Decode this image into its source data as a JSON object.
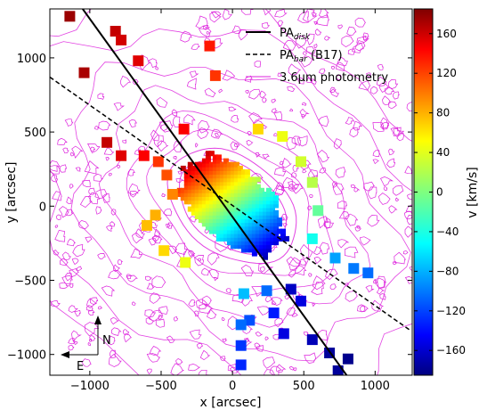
{
  "chart_data": {
    "type": "heatmap",
    "title": "",
    "xlabel": "x [arcsec]",
    "ylabel": "y [arcsec]",
    "xlim": [
      -1280,
      1260
    ],
    "ylim": [
      -1140,
      1330
    ],
    "xticks": [
      -1000,
      -500,
      0,
      500,
      1000
    ],
    "yticks": [
      -1000,
      -500,
      0,
      500,
      1000
    ],
    "xtick_labels": [
      "−1000",
      "−500",
      "0",
      "500",
      "1000"
    ],
    "ytick_labels": [
      "−1000",
      "−500",
      "0",
      "500",
      "1000"
    ],
    "colorbar": {
      "label": "v [km/s]",
      "range": [
        -185,
        185
      ],
      "ticks": [
        160,
        120,
        80,
        40,
        0,
        -40,
        -80,
        -120,
        -160
      ],
      "tick_labels": [
        "160",
        "120",
        "80",
        "40",
        "0",
        "−40",
        "−80",
        "−120",
        "−160"
      ],
      "colormap": "jet"
    },
    "legend": {
      "placement": "top-right",
      "entries": [
        {
          "label": "PA",
          "subscript": "disk",
          "style": "solid",
          "color": "#000000"
        },
        {
          "label": "PA",
          "subscript": "bar",
          "suffix": " (B17)",
          "style": "dashed",
          "color": "#000000"
        },
        {
          "label": "3.6μm photometry",
          "style": "solid",
          "color": "#dd22dd"
        }
      ]
    },
    "lines": [
      {
        "name": "PA_disk",
        "style": "solid",
        "points": [
          [
            -1050,
            1330
          ],
          [
            800,
            -1140
          ]
        ]
      },
      {
        "name": "PA_bar",
        "style": "dashed",
        "points": [
          [
            -1280,
            870
          ],
          [
            1250,
            -840
          ]
        ]
      }
    ],
    "velocity_field": {
      "center": [
        0,
        0
      ],
      "blocks": [
        {
          "x": -1140,
          "y": 1280,
          "v": 175
        },
        {
          "x": -820,
          "y": 1180,
          "v": 160
        },
        {
          "x": -780,
          "y": 1120,
          "v": 155
        },
        {
          "x": -660,
          "y": 980,
          "v": 150
        },
        {
          "x": -160,
          "y": 1080,
          "v": 130
        },
        {
          "x": -120,
          "y": 880,
          "v": 120
        },
        {
          "x": -340,
          "y": 520,
          "v": 140
        },
        {
          "x": -1040,
          "y": 900,
          "v": 170
        },
        {
          "x": -880,
          "y": 430,
          "v": 160
        },
        {
          "x": -780,
          "y": 340,
          "v": 150
        },
        {
          "x": -620,
          "y": 340,
          "v": 140
        },
        {
          "x": -520,
          "y": 300,
          "v": 120
        },
        {
          "x": -460,
          "y": 210,
          "v": 110
        },
        {
          "x": -420,
          "y": 80,
          "v": 90
        },
        {
          "x": -540,
          "y": -60,
          "v": 75
        },
        {
          "x": -600,
          "y": -130,
          "v": 70
        },
        {
          "x": -480,
          "y": -300,
          "v": 60
        },
        {
          "x": -330,
          "y": -380,
          "v": 40
        },
        {
          "x": 180,
          "y": 520,
          "v": 60
        },
        {
          "x": 350,
          "y": 470,
          "v": 40
        },
        {
          "x": 480,
          "y": 300,
          "v": 30
        },
        {
          "x": 560,
          "y": 160,
          "v": 20
        },
        {
          "x": 600,
          "y": -30,
          "v": -10
        },
        {
          "x": 560,
          "y": -220,
          "v": -40
        },
        {
          "x": 720,
          "y": -350,
          "v": -80
        },
        {
          "x": 850,
          "y": -420,
          "v": -95
        },
        {
          "x": 950,
          "y": -450,
          "v": -100
        },
        {
          "x": 80,
          "y": -590,
          "v": -70
        },
        {
          "x": 240,
          "y": -570,
          "v": -100
        },
        {
          "x": 410,
          "y": -560,
          "v": -160
        },
        {
          "x": 480,
          "y": -640,
          "v": -150
        },
        {
          "x": 290,
          "y": -720,
          "v": -130
        },
        {
          "x": 120,
          "y": -770,
          "v": -110
        },
        {
          "x": 60,
          "y": -800,
          "v": -100
        },
        {
          "x": 360,
          "y": -860,
          "v": -150
        },
        {
          "x": 60,
          "y": -940,
          "v": -120
        },
        {
          "x": 560,
          "y": -900,
          "v": -165
        },
        {
          "x": 680,
          "y": -990,
          "v": -175
        },
        {
          "x": 810,
          "y": -1030,
          "v": -180
        },
        {
          "x": 60,
          "y": -1070,
          "v": -125
        },
        {
          "x": 740,
          "y": -1110,
          "v": -175
        }
      ]
    },
    "compass": {
      "north_label": "N",
      "east_label": "E"
    }
  }
}
